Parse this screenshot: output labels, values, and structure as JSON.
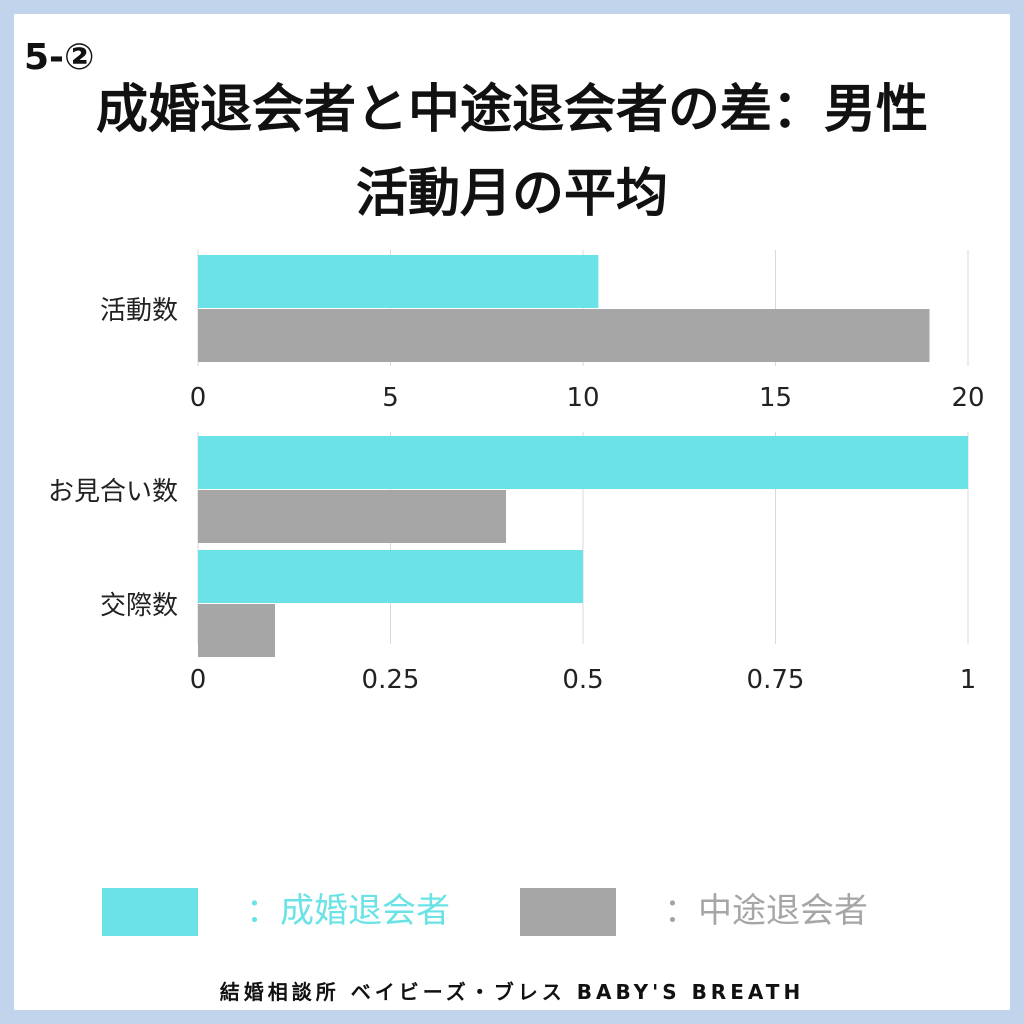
{
  "header": {
    "section": "5-②",
    "title_line1": "成婚退会者と中途退会者の差：男性",
    "title_line2": "活動月の平均"
  },
  "colors": {
    "married": "#6be3e6",
    "dropout": "#a6a6a6",
    "background_frame": "#c2d3ec",
    "grid": "#d9d9d9"
  },
  "chart_data": [
    {
      "type": "bar",
      "orientation": "horizontal",
      "categories": [
        "活動数"
      ],
      "series": [
        {
          "name": "成婚退会者",
          "values": [
            10.4
          ]
        },
        {
          "name": "中途退会者",
          "values": [
            19.0
          ]
        }
      ],
      "xlim": [
        0,
        20
      ],
      "xticks": [
        "0",
        "5",
        "10",
        "15",
        "20"
      ],
      "grid": true
    },
    {
      "type": "bar",
      "orientation": "horizontal",
      "categories": [
        "お見合い数",
        "交際数"
      ],
      "series": [
        {
          "name": "成婚退会者",
          "values": [
            1.0,
            0.5
          ]
        },
        {
          "name": "中途退会者",
          "values": [
            0.4,
            0.1
          ]
        }
      ],
      "xlim": [
        0,
        1
      ],
      "xticks": [
        "0",
        "0.25",
        "0.5",
        "0.75",
        "1"
      ],
      "grid": true
    }
  ],
  "legend": {
    "married_label": "：成婚退会者",
    "dropout_label": "：中途退会者"
  },
  "footer": "結婚相談所 ベイビーズ・ブレス BABY'S BREATH"
}
